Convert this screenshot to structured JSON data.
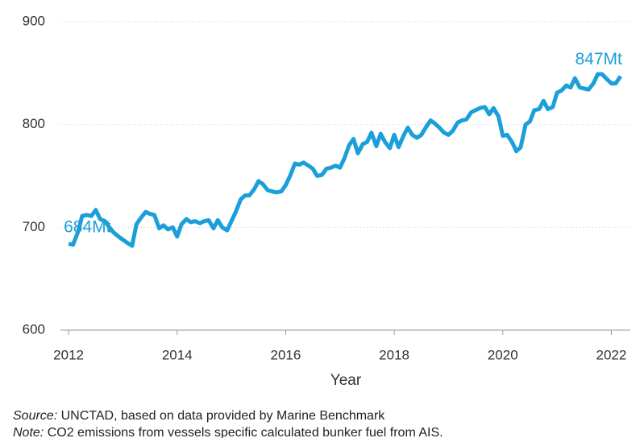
{
  "chart_data": {
    "type": "line",
    "x_label": "Year",
    "annotations": [
      "684Mt",
      "847Mt"
    ],
    "source_label": "Source:",
    "source": "UNCTAD, based on data provided by Marine Benchmark",
    "note_label": "Note:",
    "note": "CO2 emissions from vessels specific calculated bunker fuel from AIS.",
    "xlim": [
      2011.85,
      2022.35
    ],
    "ylim": [
      600,
      900
    ],
    "xticks": [
      2012,
      2014,
      2016,
      2018,
      2020,
      2022
    ],
    "yticks": [
      600,
      700,
      800,
      900
    ],
    "grid": true,
    "x": [
      2012,
      2012.08,
      2012.17,
      2012.25,
      2012.33,
      2012.42,
      2012.5,
      2012.58,
      2012.67,
      2012.75,
      2012.83,
      2012.92,
      2013,
      2013.08,
      2013.17,
      2013.25,
      2013.33,
      2013.42,
      2013.5,
      2013.58,
      2013.67,
      2013.75,
      2013.83,
      2013.92,
      2014,
      2014.08,
      2014.17,
      2014.25,
      2014.33,
      2014.42,
      2014.5,
      2014.58,
      2014.67,
      2014.75,
      2014.83,
      2014.92,
      2015,
      2015.08,
      2015.17,
      2015.25,
      2015.33,
      2015.42,
      2015.5,
      2015.58,
      2015.67,
      2015.75,
      2015.83,
      2015.92,
      2016,
      2016.08,
      2016.17,
      2016.25,
      2016.33,
      2016.42,
      2016.5,
      2016.58,
      2016.67,
      2016.75,
      2016.83,
      2016.92,
      2017,
      2017.08,
      2017.17,
      2017.25,
      2017.33,
      2017.42,
      2017.5,
      2017.58,
      2017.67,
      2017.75,
      2017.83,
      2017.92,
      2018,
      2018.08,
      2018.17,
      2018.25,
      2018.33,
      2018.42,
      2018.5,
      2018.58,
      2018.67,
      2018.75,
      2018.83,
      2018.92,
      2019,
      2019.08,
      2019.17,
      2019.25,
      2019.33,
      2019.42,
      2019.5,
      2019.58,
      2019.67,
      2019.75,
      2019.83,
      2019.92,
      2020,
      2020.08,
      2020.17,
      2020.25,
      2020.33,
      2020.42,
      2020.5,
      2020.58,
      2020.67,
      2020.75,
      2020.83,
      2020.92,
      2021,
      2021.08,
      2021.17,
      2021.25,
      2021.33,
      2021.42,
      2021.5,
      2021.58,
      2021.67,
      2021.75,
      2021.83,
      2021.92,
      2022,
      2022.08,
      2022.17
    ],
    "series": [
      {
        "color": "#1a9fd9",
        "values": [
          684,
          683,
          695,
          711,
          712,
          711,
          717,
          708,
          706,
          700,
          695,
          691,
          688,
          685,
          682,
          703,
          709,
          715,
          713,
          712,
          699,
          702,
          698,
          700,
          691,
          703,
          708,
          705,
          706,
          704,
          706,
          707,
          699,
          707,
          700,
          697,
          706,
          715,
          727,
          731,
          731,
          737,
          745,
          742,
          736,
          735,
          734,
          735,
          741,
          750,
          762,
          761,
          763,
          760,
          757,
          750,
          751,
          757,
          758,
          760,
          758,
          767,
          780,
          786,
          772,
          781,
          783,
          792,
          779,
          791,
          783,
          777,
          790,
          778,
          789,
          797,
          790,
          787,
          790,
          797,
          804,
          801,
          797,
          792,
          790,
          794,
          802,
          804,
          805,
          812,
          814,
          816,
          817,
          810,
          816,
          808,
          789,
          790,
          783,
          774,
          778,
          800,
          803,
          814,
          815,
          823,
          815,
          817,
          831,
          833,
          838,
          836,
          845,
          836,
          835,
          834,
          840,
          849,
          849,
          844,
          840,
          840,
          847
        ]
      }
    ]
  }
}
